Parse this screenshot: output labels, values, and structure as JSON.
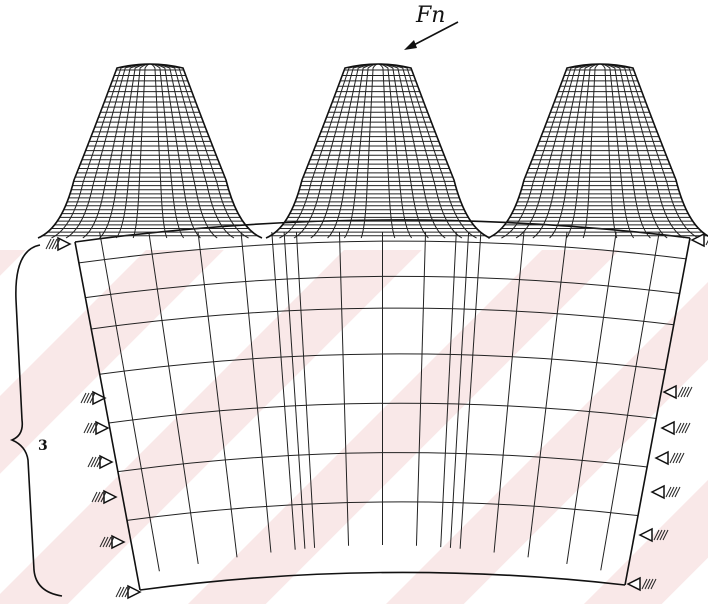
{
  "labels": {
    "force": "Fn",
    "dimension": "3"
  }
}
